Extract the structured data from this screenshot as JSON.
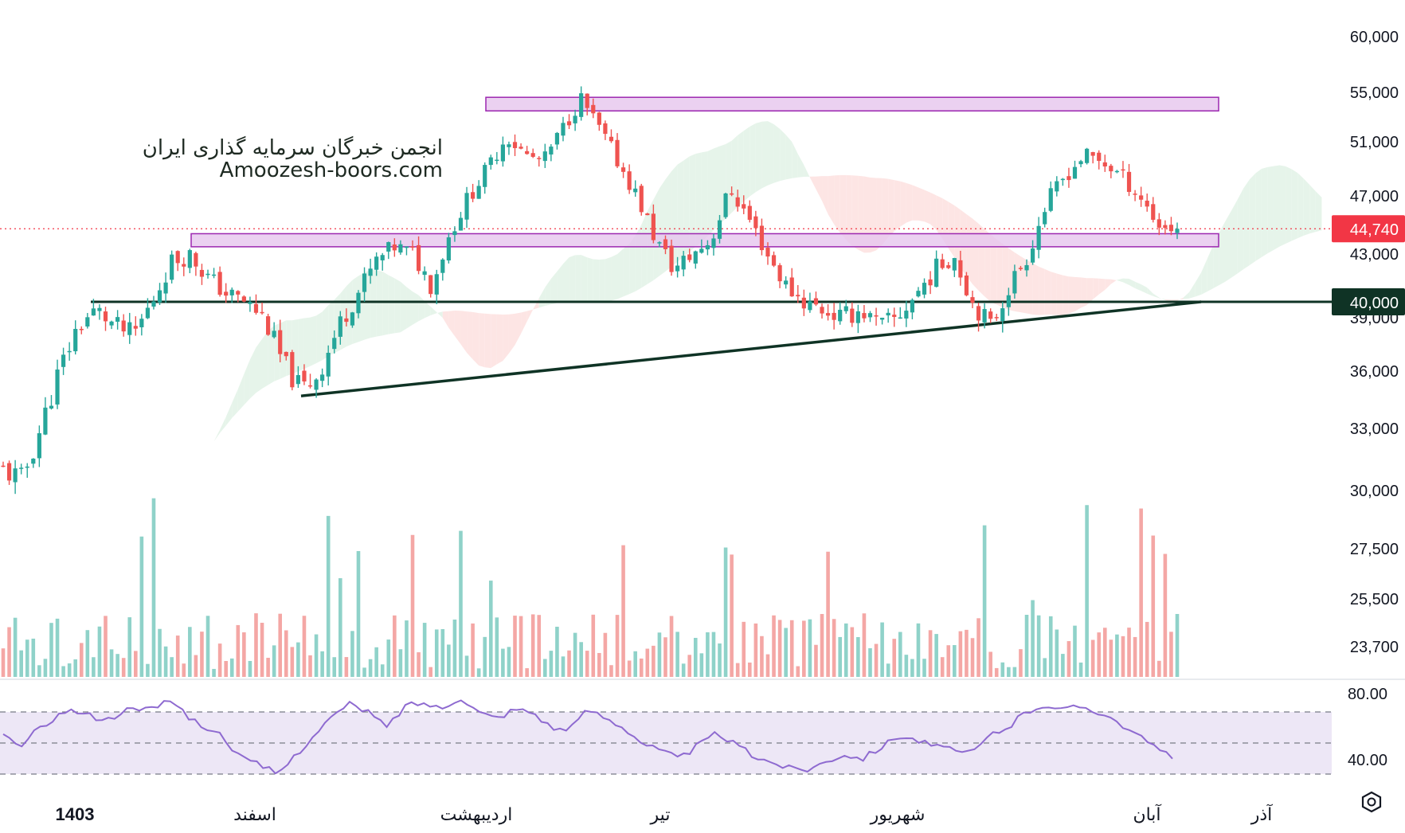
{
  "watermark": {
    "line1": "انجمن خبرگان سرمایه گذاری ایران",
    "line2": "Amoozesh-boors.com"
  },
  "colors": {
    "up": "#26a69a",
    "down": "#ef5350",
    "volume_up": "#8fd2c9",
    "volume_down": "#f4a7a5",
    "cloud_green": "#e6f4ea",
    "cloud_red": "#fde5e4",
    "zone_fill": "#e6c6ee",
    "zone_stroke": "#9c27b0",
    "support": "#0f3325",
    "rsi_line": "#8e6ad0",
    "rsi_band": "#ede7f6",
    "last_price": "#f23645"
  },
  "chart_data": [
    {
      "type": "candlestick",
      "price_axis_ticks": [
        "60,000",
        "55,000",
        "51,000",
        "47,000",
        "43,000",
        "39,000",
        "36,000",
        "33,000",
        "30,000",
        "27,500",
        "25,500",
        "23,700"
      ],
      "time_axis_labels": [
        "1403",
        "اسفند",
        "اردیبهشت",
        "تیر",
        "شهریور",
        "آبان",
        "آذر"
      ],
      "last_price_label": "44,740",
      "support_level_label": "40,000",
      "last_price": 44740,
      "support_level": 40000,
      "resistance_zones": [
        {
          "low": 53500,
          "high": 54600
        },
        {
          "low": 43500,
          "high": 44400
        }
      ],
      "trendline": {
        "from": 34700,
        "to": 40000
      },
      "price_path": [
        31000,
        30500,
        33000,
        36000,
        38500,
        39500,
        38500,
        38000,
        40000,
        42500,
        43000,
        41500,
        40500,
        40000,
        39000,
        36500,
        35000,
        36000,
        38500,
        40500,
        42500,
        43500,
        43000,
        41000,
        44500,
        47000,
        49000,
        51500,
        50000,
        49500,
        52000,
        54500,
        52000,
        49500,
        47000,
        44000,
        42000,
        43000,
        44000,
        47500,
        45500,
        43000,
        41000,
        40000,
        39500,
        39000,
        39500,
        38500,
        39000,
        40500,
        42000,
        43000,
        40000,
        38500,
        41000,
        43000,
        46500,
        48500,
        50000,
        49500,
        48500,
        47000,
        45000,
        44740
      ],
      "volume_note": "volume histogram, no scale shown",
      "ichimoku_cloud": true,
      "grid": false
    },
    {
      "type": "line",
      "name": "RSI",
      "axis_ticks": [
        "80.00",
        "40.00"
      ],
      "band": [
        30,
        70
      ],
      "midline": 50,
      "values": [
        55,
        48,
        60,
        68,
        71,
        66,
        65,
        74,
        70,
        80,
        68,
        60,
        55,
        40,
        36,
        30,
        42,
        55,
        67,
        75,
        70,
        60,
        74,
        76,
        72,
        80,
        70,
        66,
        72,
        70,
        60,
        58,
        72,
        66,
        60,
        50,
        45,
        40,
        48,
        56,
        50,
        42,
        38,
        34,
        33,
        38,
        43,
        40,
        47,
        55,
        52,
        48,
        45,
        43,
        55,
        60,
        70,
        75,
        71,
        74,
        70,
        64,
        55,
        48,
        40
      ]
    }
  ]
}
